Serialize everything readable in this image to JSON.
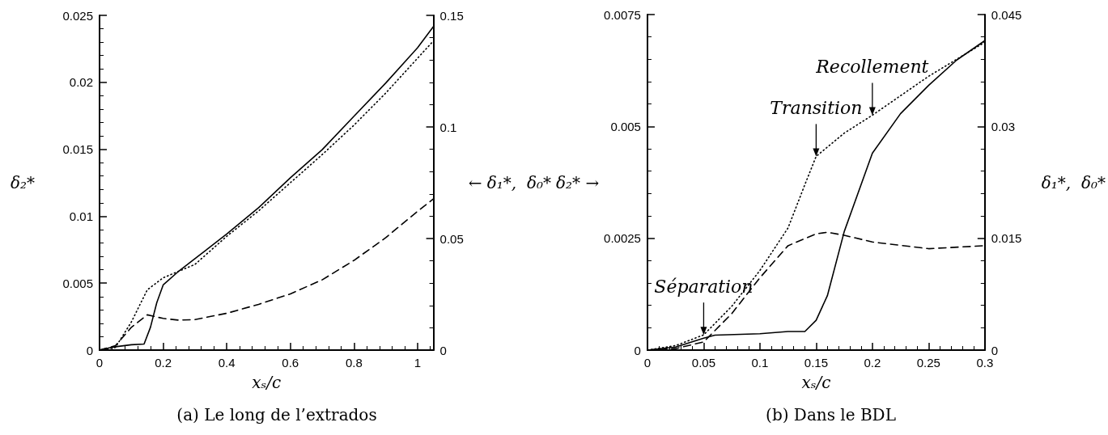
{
  "chart_data": [
    {
      "type": "line",
      "title": "(a) Le long de l’extrados",
      "xlabel": "xₛ/c",
      "ylabel": "δ₂*",
      "y2label": "← δ₁*,  δ₀*",
      "marker": "none",
      "xlim": [
        0,
        1.05
      ],
      "xticks": [
        0,
        0.2,
        0.4,
        0.6,
        0.8,
        1
      ],
      "ylim": [
        0,
        0.025
      ],
      "yticks": [
        0,
        0.005,
        0.01,
        0.015,
        0.02,
        0.025
      ],
      "y2lim": [
        0,
        0.15
      ],
      "y2ticks": [
        0,
        0.05,
        0.1,
        0.15
      ],
      "series": [
        {
          "color": "#000000",
          "line_style": "dotted",
          "axis": "y",
          "x": [
            0,
            0.05,
            0.1,
            0.15,
            0.2,
            0.25,
            0.3,
            0.4,
            0.5,
            0.6,
            0.7,
            0.8,
            0.9,
            1.0,
            1.05
          ],
          "values": [
            0,
            0.0002,
            0.0021,
            0.0045,
            0.0054,
            0.0059,
            0.0064,
            0.0085,
            0.0104,
            0.0125,
            0.0146,
            0.0168,
            0.0192,
            0.0218,
            0.0231
          ]
        },
        {
          "color": "#000000",
          "line_style": "solid",
          "axis": "y2",
          "x": [
            0,
            0.03,
            0.05,
            0.1,
            0.14,
            0.16,
            0.18,
            0.2,
            0.25,
            0.3,
            0.4,
            0.5,
            0.6,
            0.7,
            0.8,
            0.9,
            1.0,
            1.05
          ],
          "values": [
            0,
            0.001,
            0.0015,
            0.0024,
            0.0027,
            0.0102,
            0.0213,
            0.0292,
            0.0355,
            0.041,
            0.052,
            0.0638,
            0.0772,
            0.0898,
            0.1048,
            0.1197,
            0.1355,
            0.145
          ]
        },
        {
          "color": "#000000",
          "line_style": "dashed",
          "axis": "y2",
          "x": [
            0,
            0.05,
            0.1,
            0.15,
            0.2,
            0.25,
            0.3,
            0.4,
            0.5,
            0.6,
            0.7,
            0.8,
            0.9,
            1.0,
            1.05
          ],
          "values": [
            0,
            0.002,
            0.0102,
            0.0158,
            0.0142,
            0.0134,
            0.0137,
            0.0165,
            0.0205,
            0.0252,
            0.0315,
            0.0402,
            0.0504,
            0.0622,
            0.0678
          ]
        }
      ]
    },
    {
      "type": "line",
      "title": "(b) Dans le BDL",
      "xlabel": "xₛ/c",
      "ylabel": "δ₂* →",
      "y2label": "δ₁*,  δ₀*",
      "marker": "none",
      "xlim": [
        0,
        0.3
      ],
      "xticks": [
        0,
        0.05,
        0.1,
        0.15,
        0.2,
        0.25,
        0.3
      ],
      "ylim": [
        0,
        0.0075
      ],
      "yticks": [
        0,
        0.0025,
        0.005,
        0.0075
      ],
      "y2lim": [
        0,
        0.045
      ],
      "y2ticks": [
        0,
        0.015,
        0.03,
        0.045
      ],
      "annotations": [
        {
          "text": "Séparation",
          "x": 0.05,
          "y": 0.00034
        },
        {
          "text": "Transition",
          "x": 0.15,
          "y": 0.00433
        },
        {
          "text": "Recollement",
          "x": 0.2,
          "y": 0.00525
        }
      ],
      "series": [
        {
          "color": "#000000",
          "line_style": "dotted",
          "axis": "y",
          "x": [
            0,
            0.025,
            0.05,
            0.075,
            0.1,
            0.125,
            0.14,
            0.15,
            0.175,
            0.2,
            0.25,
            0.3
          ],
          "values": [
            0,
            0.0001,
            0.00034,
            0.00098,
            0.00178,
            0.00273,
            0.0037,
            0.00433,
            0.00485,
            0.00525,
            0.00612,
            0.00688
          ]
        },
        {
          "color": "#000000",
          "line_style": "solid",
          "axis": "y2",
          "x": [
            0,
            0.025,
            0.05,
            0.06,
            0.1,
            0.125,
            0.14,
            0.15,
            0.16,
            0.175,
            0.2,
            0.225,
            0.25,
            0.275,
            0.3
          ],
          "values": [
            0,
            0.0004,
            0.0016,
            0.002,
            0.0022,
            0.0025,
            0.0025,
            0.004,
            0.0073,
            0.0159,
            0.0264,
            0.0317,
            0.0355,
            0.0389,
            0.0415
          ]
        },
        {
          "color": "#000000",
          "line_style": "dashed",
          "axis": "y2",
          "x": [
            0,
            0.025,
            0.05,
            0.075,
            0.1,
            0.125,
            0.15,
            0.16,
            0.175,
            0.2,
            0.25,
            0.3
          ],
          "values": [
            0,
            0.0002,
            0.0011,
            0.0049,
            0.0097,
            0.014,
            0.0156,
            0.0158,
            0.0154,
            0.0145,
            0.0136,
            0.014
          ]
        }
      ]
    }
  ]
}
